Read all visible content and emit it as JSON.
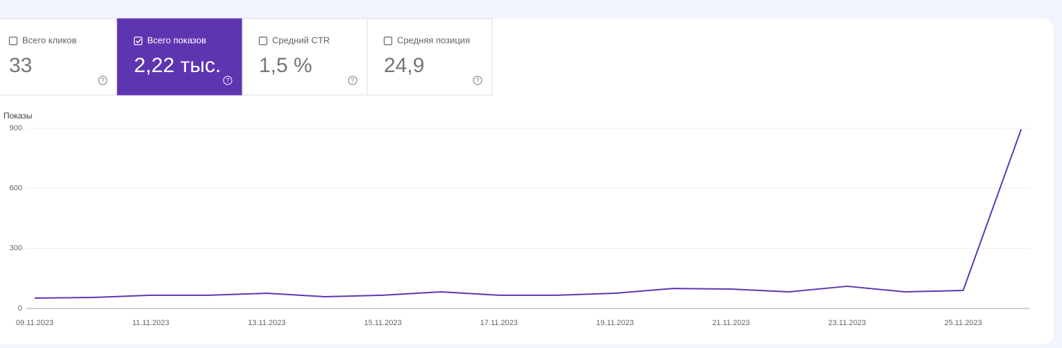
{
  "metrics": [
    {
      "label": "Всего кликов",
      "value": "33",
      "selected": false
    },
    {
      "label": "Всего показов",
      "value": "2,22 тыс.",
      "selected": true
    },
    {
      "label": "Средний CTR",
      "value": "1,5 %",
      "selected": false
    },
    {
      "label": "Средняя позиция",
      "value": "24,9",
      "selected": false
    }
  ],
  "chart_data": {
    "type": "line",
    "y_label": "Показы",
    "categories": [
      "09.11.2023",
      null,
      "11.11.2023",
      null,
      "13.11.2023",
      null,
      "15.11.2023",
      null,
      "17.11.2023",
      null,
      "19.11.2023",
      null,
      "21.11.2023",
      null,
      "23.11.2023",
      null,
      "25.11.2023",
      null
    ],
    "values": [
      52,
      55,
      66,
      66,
      76,
      59,
      66,
      83,
      66,
      66,
      76,
      100,
      97,
      83,
      111,
      83,
      90,
      895
    ],
    "color": "#5e35b1",
    "ylim": [
      0,
      900
    ],
    "yticks": [
      0,
      300,
      600,
      900
    ],
    "grid": true
  }
}
